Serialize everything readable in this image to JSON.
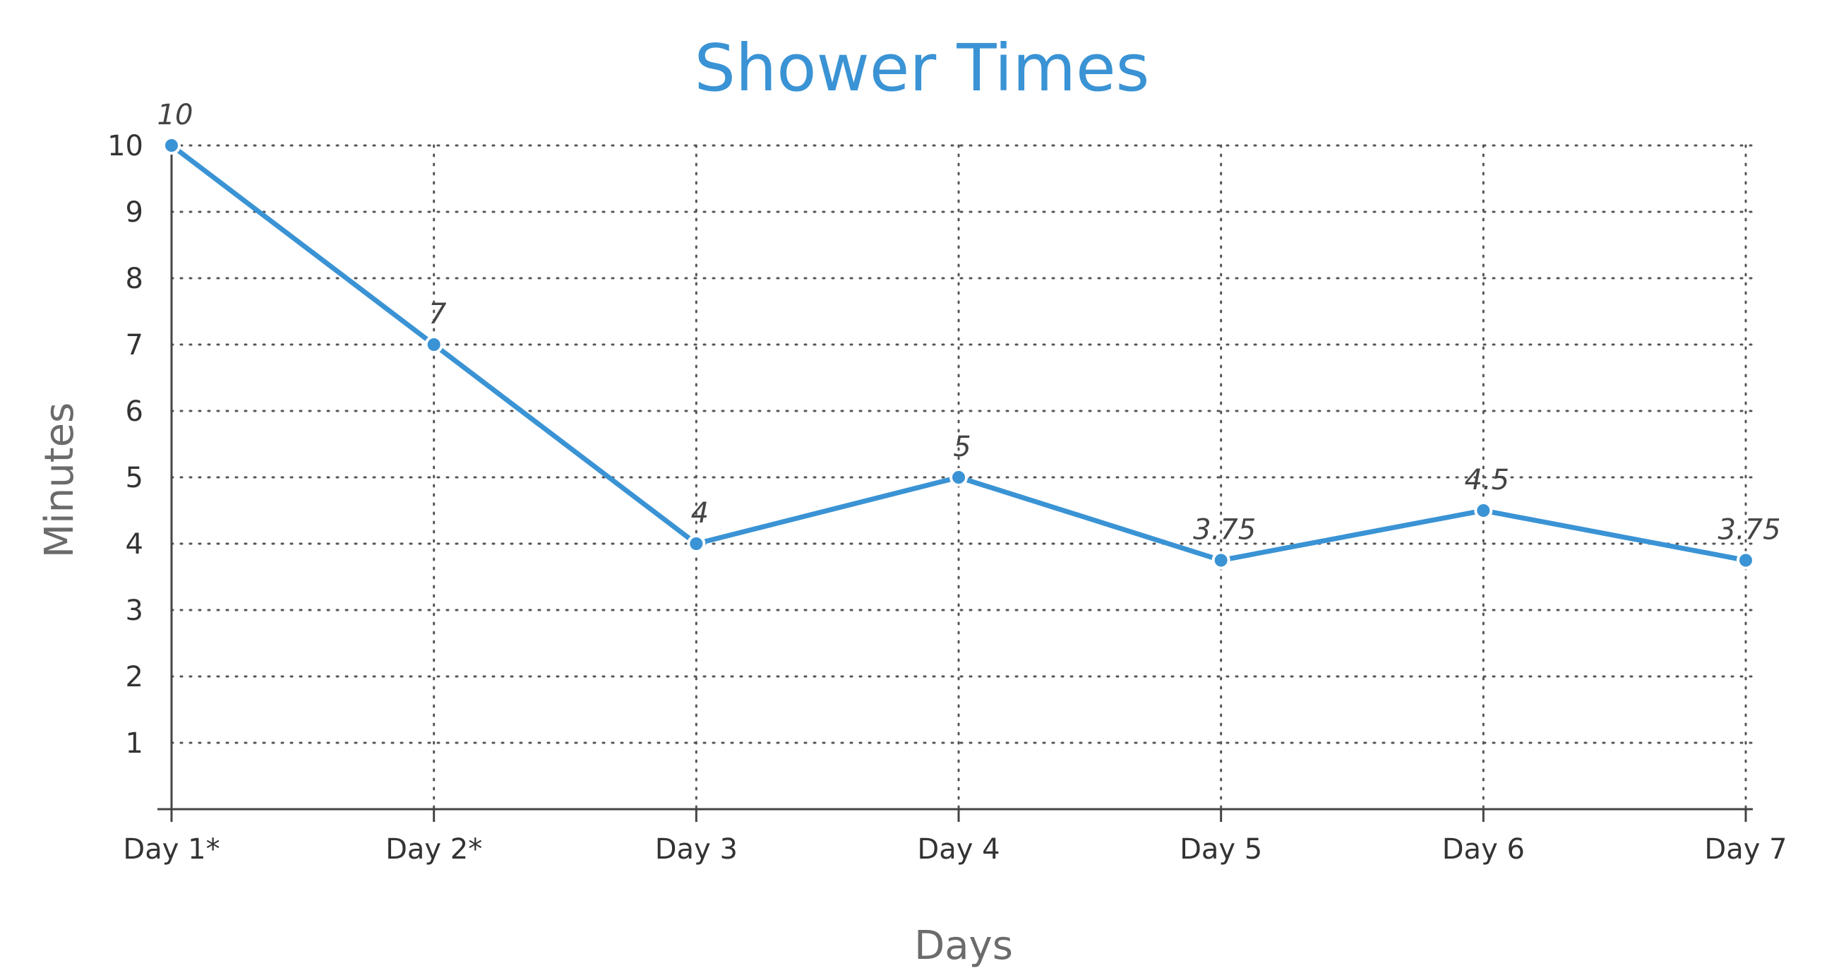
{
  "chart_data": {
    "type": "line",
    "title": "Shower Times",
    "xlabel": "Days",
    "ylabel": "Minutes",
    "categories": [
      "Day 1*",
      "Day 2*",
      "Day 3",
      "Day 4",
      "Day 5",
      "Day 6",
      "Day 7"
    ],
    "series": [
      {
        "values": [
          10,
          7,
          4,
          5,
          3.75,
          4.5,
          3.75
        ],
        "labels": [
          "10",
          "7",
          "4",
          "5",
          "3.75",
          "4.5",
          "3.75"
        ],
        "color": "#3a93d4"
      }
    ],
    "yticks": [
      1,
      2,
      3,
      4,
      5,
      6,
      7,
      8,
      9,
      10
    ],
    "ylim": [
      0,
      10
    ],
    "grid": true,
    "grid_style": "dotted",
    "legend": "none"
  }
}
